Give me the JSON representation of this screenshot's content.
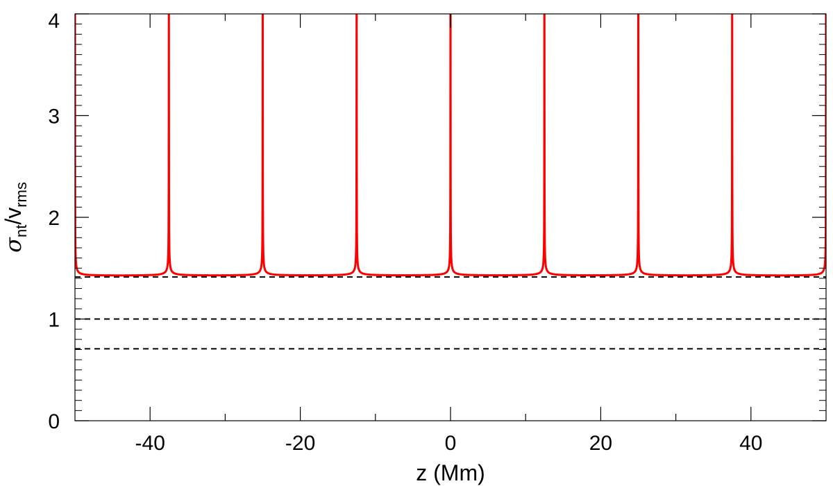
{
  "chart_data": {
    "type": "line",
    "title": "",
    "xlabel": "z (Mm)",
    "ylabel": {
      "symbol": "σ",
      "symbol_sub": "nt",
      "slash": "/",
      "base": "v",
      "base_sub": "rms"
    },
    "xlim": [
      -50,
      50
    ],
    "ylim": [
      0,
      4
    ],
    "x_ticks": [
      -40,
      -20,
      0,
      20,
      40
    ],
    "x_tick_labels": [
      "-40",
      "-20",
      "0",
      "20",
      "40"
    ],
    "y_ticks": [
      0,
      1,
      2,
      3,
      4
    ],
    "y_tick_labels": [
      "0",
      "1",
      "2",
      "3",
      "4"
    ],
    "x_minor_step": 10,
    "y_minor_step": 0.1,
    "grid": false,
    "curve": {
      "color": "#ff0000",
      "period": 12.5,
      "peak_centers": [
        -37.5,
        -25,
        -12.5,
        0,
        12.5,
        25,
        37.5
      ],
      "edge_rise_x": [
        -50,
        50
      ],
      "baseline": 1.42,
      "amplitude": 0.018
    },
    "reference_lines": [
      {
        "y": 1.414,
        "color": "#000000",
        "style": "dashed"
      },
      {
        "y": 1.0,
        "color": "#000000",
        "style": "dashed"
      },
      {
        "y": 0.707,
        "color": "#000000",
        "style": "dashed"
      }
    ]
  }
}
